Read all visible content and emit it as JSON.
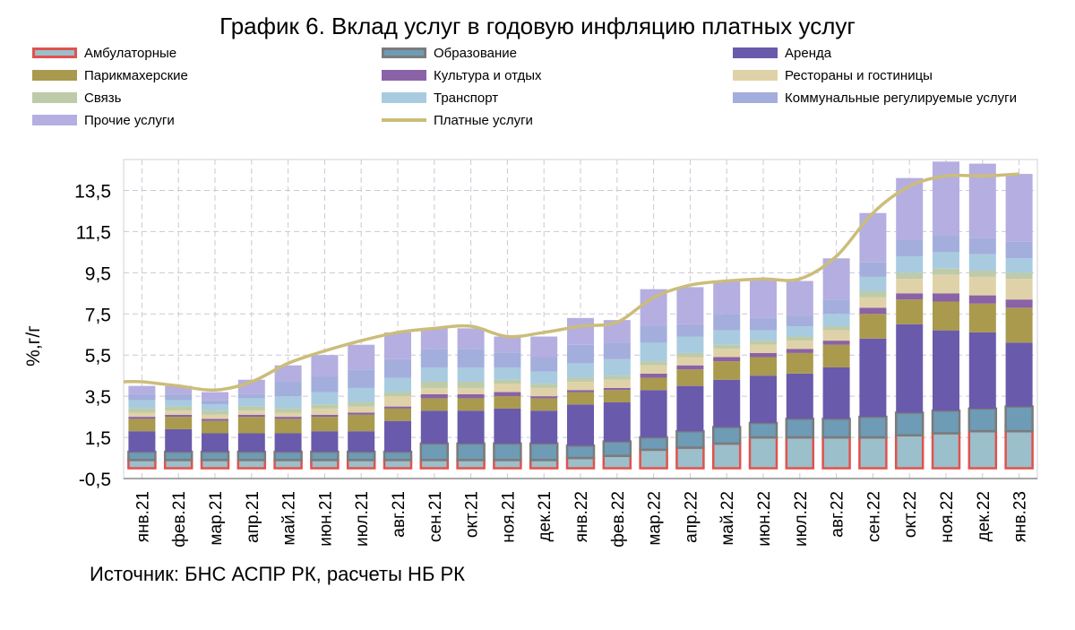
{
  "title": "График 6. Вклад услуг в годовую инфляцию платных услуг",
  "source": "Источник: БНС АСПР РК, расчеты НБ РК",
  "colors": {
    "ambulatory": "#9bbfcb",
    "ambulatory_border": "#e0524d",
    "education": "#6e9bb5",
    "education_border": "#7b7b7b",
    "rent": "#6a5aab",
    "hair": "#a99a4e",
    "culture": "#8a62a6",
    "restaurants": "#e0d2a8",
    "communication": "#bdcba9",
    "transport": "#a9cbe0",
    "utilities": "#a3aedc",
    "other": "#b5aee0",
    "total_line": "#cbbd7a",
    "grid": "#c9c9d6"
  },
  "chart_data": {
    "type": "bar",
    "stacked": true,
    "title": "График 6. Вклад услуг в годовую инфляцию платных услуг",
    "ylabel": "%,г/г",
    "xlabel": "",
    "ylim": [
      -0.5,
      15.0
    ],
    "yticks": [
      -0.5,
      1.5,
      3.5,
      5.5,
      7.5,
      9.5,
      11.5,
      13.5
    ],
    "ytick_labels": [
      "-0,5",
      "1,5",
      "3,5",
      "5,5",
      "7,5",
      "9,5",
      "11,5",
      "13,5"
    ],
    "grid": true,
    "legend_position": "top",
    "categories": [
      "янв.21",
      "фев.21",
      "мар.21",
      "апр.21",
      "май.21",
      "июн.21",
      "июл.21",
      "авг.21",
      "сен.21",
      "окт.21",
      "ноя.21",
      "дек.21",
      "янв.22",
      "фев.22",
      "мар.22",
      "апр.22",
      "май.22",
      "июн.22",
      "июл.22",
      "авг.22",
      "сен.22",
      "окт.22",
      "ноя.22",
      "дек.22",
      "янв.23"
    ],
    "series": [
      {
        "name": "Амбулаторные",
        "key": "ambulatory",
        "values": [
          0.4,
          0.4,
          0.4,
          0.4,
          0.4,
          0.4,
          0.4,
          0.4,
          0.4,
          0.4,
          0.4,
          0.4,
          0.5,
          0.6,
          0.9,
          1.0,
          1.2,
          1.5,
          1.5,
          1.5,
          1.5,
          1.6,
          1.7,
          1.8,
          1.8
        ]
      },
      {
        "name": "Образование",
        "key": "education",
        "values": [
          0.4,
          0.4,
          0.4,
          0.4,
          0.4,
          0.4,
          0.4,
          0.4,
          0.8,
          0.8,
          0.8,
          0.8,
          0.6,
          0.7,
          0.6,
          0.8,
          0.8,
          0.7,
          0.9,
          0.9,
          1.0,
          1.1,
          1.1,
          1.1,
          1.2
        ]
      },
      {
        "name": "Аренда",
        "key": "rent",
        "values": [
          1.0,
          1.1,
          0.9,
          0.9,
          0.9,
          1.0,
          1.0,
          1.5,
          1.6,
          1.6,
          1.7,
          1.6,
          2.0,
          1.9,
          2.3,
          2.2,
          2.3,
          2.3,
          2.2,
          2.5,
          3.8,
          4.3,
          3.9,
          3.7,
          3.1
        ]
      },
      {
        "name": "Парикмахерские",
        "key": "hair",
        "values": [
          0.6,
          0.6,
          0.6,
          0.8,
          0.7,
          0.7,
          0.8,
          0.6,
          0.6,
          0.6,
          0.6,
          0.6,
          0.6,
          0.6,
          0.6,
          0.8,
          0.9,
          0.9,
          1.0,
          1.1,
          1.2,
          1.2,
          1.4,
          1.4,
          1.7
        ]
      },
      {
        "name": "Культура и отдых",
        "key": "culture",
        "values": [
          0.1,
          0.1,
          0.1,
          0.1,
          0.1,
          0.1,
          0.1,
          0.1,
          0.2,
          0.2,
          0.2,
          0.1,
          0.1,
          0.1,
          0.2,
          0.2,
          0.2,
          0.2,
          0.2,
          0.2,
          0.3,
          0.3,
          0.4,
          0.4,
          0.4
        ]
      },
      {
        "name": "Рестораны и гостиницы",
        "key": "restaurants",
        "values": [
          0.2,
          0.2,
          0.2,
          0.2,
          0.2,
          0.3,
          0.3,
          0.5,
          0.3,
          0.3,
          0.4,
          0.4,
          0.4,
          0.4,
          0.4,
          0.4,
          0.4,
          0.4,
          0.4,
          0.5,
          0.5,
          0.7,
          0.9,
          0.9,
          1.0
        ]
      },
      {
        "name": "Связь",
        "key": "communication",
        "values": [
          0.2,
          0.2,
          0.2,
          0.2,
          0.2,
          0.2,
          0.2,
          0.2,
          0.3,
          0.3,
          0.2,
          0.2,
          0.2,
          0.2,
          0.2,
          0.2,
          0.2,
          0.2,
          0.2,
          0.2,
          0.3,
          0.3,
          0.3,
          0.3,
          0.3
        ]
      },
      {
        "name": "Транспорт",
        "key": "transport",
        "values": [
          0.4,
          0.3,
          0.3,
          0.4,
          0.6,
          0.6,
          0.7,
          0.7,
          0.7,
          0.7,
          0.6,
          0.6,
          0.7,
          0.8,
          0.9,
          0.8,
          0.7,
          0.5,
          0.5,
          0.6,
          0.7,
          0.8,
          0.8,
          0.8,
          0.7
        ]
      },
      {
        "name": "Коммунальные регулируемые услуги",
        "key": "utilities",
        "values": [
          0.3,
          0.3,
          0.2,
          0.2,
          0.7,
          0.8,
          0.9,
          0.9,
          0.9,
          0.9,
          0.7,
          0.7,
          0.9,
          0.8,
          0.8,
          0.6,
          0.8,
          0.6,
          0.5,
          0.7,
          0.7,
          0.8,
          0.8,
          0.8,
          0.8
        ]
      },
      {
        "name": "Прочие услуги",
        "key": "other",
        "values": [
          0.4,
          0.4,
          0.4,
          0.7,
          0.8,
          1.0,
          1.2,
          1.3,
          1.0,
          1.0,
          0.8,
          1.0,
          1.3,
          1.1,
          1.8,
          1.8,
          1.6,
          1.9,
          1.7,
          2.0,
          2.4,
          3.0,
          3.6,
          3.6,
          3.3
        ]
      }
    ],
    "line": {
      "name": "Платные услуги",
      "key": "total_line",
      "values": [
        4.2,
        4.0,
        3.8,
        4.2,
        5.1,
        5.7,
        6.2,
        6.6,
        6.8,
        6.9,
        6.4,
        6.6,
        6.9,
        7.1,
        8.3,
        8.9,
        9.1,
        9.2,
        9.2,
        10.3,
        12.4,
        13.7,
        14.2,
        14.2,
        14.3
      ]
    }
  }
}
